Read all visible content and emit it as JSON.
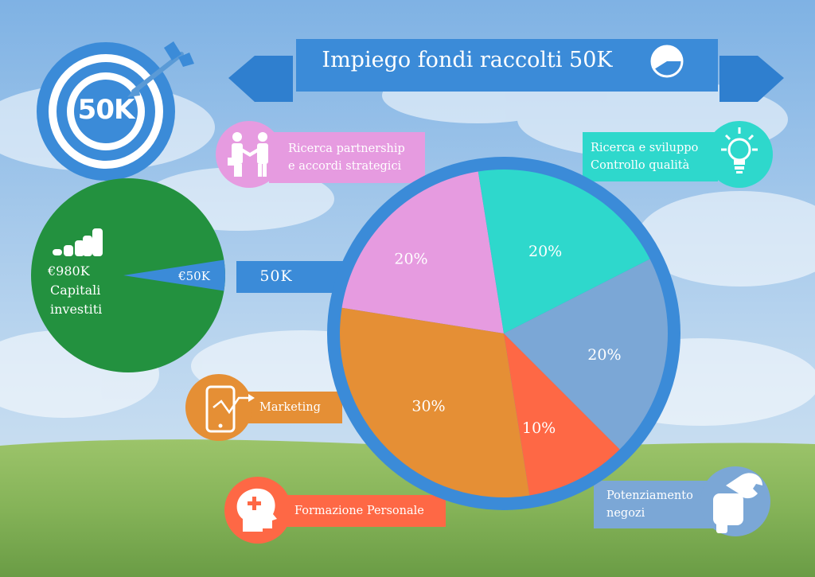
{
  "title": "Impiego fondi raccolti 50K",
  "target": {
    "label": "50K"
  },
  "capital": {
    "total_label": "€980K",
    "caption_line1": "Capitali",
    "caption_line2": "investiti",
    "slice_label": "€50K",
    "total": 980,
    "slice": 50
  },
  "connector_label": "50K",
  "categories": {
    "partnership": {
      "line1": "Ricerca partnership",
      "line2": "e accordi strategici"
    },
    "ricerca": {
      "line1": "Ricerca e sviluppo",
      "line2": "Controllo qualità"
    },
    "marketing": {
      "label": "Marketing"
    },
    "formazione": {
      "label": "Formazione Personale"
    },
    "negozi": {
      "line1": "Potenziamento",
      "line2": "negozi"
    }
  },
  "colors": {
    "partnership": "#e69be0",
    "ricerca": "#2ed8cc",
    "negozi": "#7ba7d6",
    "formazione": "#fe6845",
    "marketing": "#e58f35",
    "capital": "#23913f",
    "accent": "#3b8bd8"
  },
  "chart_data": {
    "type": "pie",
    "title": "Impiego fondi raccolti 50K",
    "slices": [
      {
        "key": "partnership",
        "value": 20,
        "label": "20%"
      },
      {
        "key": "ricerca",
        "value": 20,
        "label": "20%"
      },
      {
        "key": "negozi",
        "value": 20,
        "label": "20%"
      },
      {
        "key": "formazione",
        "value": 10,
        "label": "10%"
      },
      {
        "key": "marketing",
        "value": 30,
        "label": "30%"
      }
    ]
  }
}
